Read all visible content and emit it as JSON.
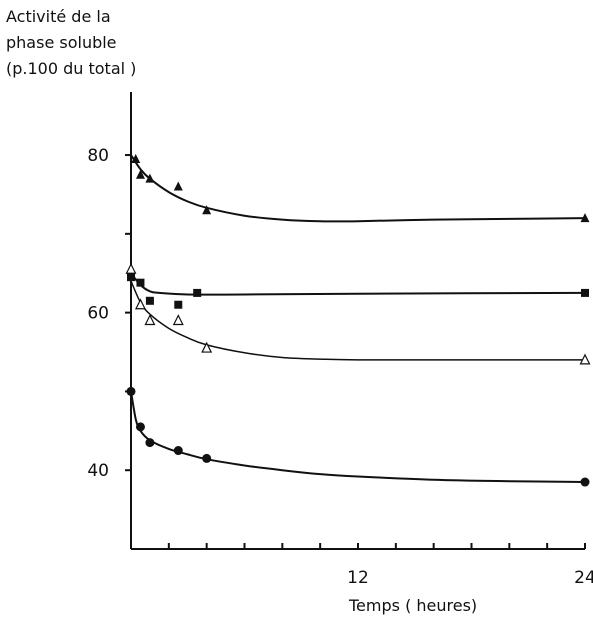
{
  "chart_data": {
    "type": "scatter",
    "ylabel_lines": [
      "Activité de la",
      "phase soluble",
      "(p.100 du total )"
    ],
    "xlabel": "Temps ( heures)",
    "xlim": [
      0,
      24
    ],
    "ylim": [
      30,
      88
    ],
    "xticks": [
      0,
      2,
      4,
      6,
      8,
      10,
      12,
      14,
      16,
      18,
      20,
      22,
      24
    ],
    "xtick_labels": [
      {
        "x": 12,
        "label": "12"
      },
      {
        "x": 24,
        "label": "24"
      }
    ],
    "yticks": [
      40,
      50,
      60,
      70,
      80
    ],
    "ytick_labels": [
      {
        "y": 40,
        "label": "40"
      },
      {
        "y": 60,
        "label": "60"
      },
      {
        "y": 80,
        "label": "80"
      }
    ],
    "grid": false,
    "series": [
      {
        "marker": "filled-triangle",
        "points": [
          [
            0.25,
            79.5
          ],
          [
            0.5,
            77.5
          ],
          [
            1.0,
            77
          ],
          [
            2.5,
            76
          ],
          [
            4.0,
            73
          ],
          [
            24,
            72
          ]
        ],
        "fit": [
          [
            0,
            80
          ],
          [
            0.5,
            78.2
          ],
          [
            1,
            77
          ],
          [
            2,
            75.3
          ],
          [
            3,
            74.1
          ],
          [
            4,
            73.3
          ],
          [
            6,
            72.3
          ],
          [
            8,
            71.8
          ],
          [
            10,
            71.6
          ],
          [
            12,
            71.6
          ],
          [
            16,
            71.8
          ],
          [
            20,
            71.9
          ],
          [
            24,
            72
          ]
        ]
      },
      {
        "marker": "filled-square",
        "points": [
          [
            0,
            64.5
          ],
          [
            0.5,
            63.8
          ],
          [
            1.0,
            61.5
          ],
          [
            2.5,
            61
          ],
          [
            3.5,
            62.5
          ],
          [
            24,
            62.5
          ]
        ],
        "fit": [
          [
            0,
            65
          ],
          [
            0.5,
            63.5
          ],
          [
            1,
            62.7
          ],
          [
            1.5,
            62.5
          ],
          [
            3,
            62.3
          ],
          [
            6,
            62.3
          ],
          [
            12,
            62.4
          ],
          [
            24,
            62.5
          ]
        ]
      },
      {
        "marker": "open-triangle",
        "points": [
          [
            0,
            65.5
          ],
          [
            0.5,
            61
          ],
          [
            1.0,
            59
          ],
          [
            2.5,
            59
          ],
          [
            4.0,
            55.5
          ],
          [
            24,
            54
          ]
        ],
        "fit": [
          [
            0,
            64
          ],
          [
            0.5,
            61.3
          ],
          [
            1,
            59.8
          ],
          [
            2,
            58
          ],
          [
            3,
            56.8
          ],
          [
            4,
            55.9
          ],
          [
            6,
            54.9
          ],
          [
            8,
            54.3
          ],
          [
            10,
            54.1
          ],
          [
            12,
            54
          ],
          [
            16,
            54
          ],
          [
            20,
            54
          ],
          [
            24,
            54
          ]
        ]
      },
      {
        "marker": "filled-circle",
        "points": [
          [
            0,
            50
          ],
          [
            0.5,
            45.5
          ],
          [
            1.0,
            43.5
          ],
          [
            2.5,
            42.5
          ],
          [
            4.0,
            41.5
          ],
          [
            24,
            38.5
          ]
        ],
        "fit": [
          [
            0,
            50
          ],
          [
            0.25,
            46.5
          ],
          [
            0.5,
            45
          ],
          [
            1,
            43.8
          ],
          [
            2,
            42.7
          ],
          [
            3,
            42
          ],
          [
            4,
            41.4
          ],
          [
            6,
            40.6
          ],
          [
            8,
            40
          ],
          [
            10,
            39.5
          ],
          [
            12,
            39.2
          ],
          [
            16,
            38.8
          ],
          [
            20,
            38.6
          ],
          [
            24,
            38.5
          ]
        ]
      }
    ]
  }
}
